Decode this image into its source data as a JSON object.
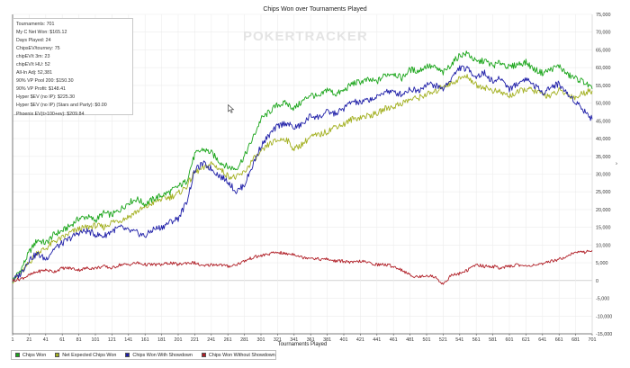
{
  "chart_data": {
    "type": "line",
    "title": "Chips Won over Tournaments Played",
    "xlabel": "Tournaments Played",
    "ylabel": "",
    "xlim": [
      1,
      701
    ],
    "ylim": [
      -15000,
      75000
    ],
    "x_ticks": [
      "1",
      "21",
      "41",
      "61",
      "81",
      "101",
      "121",
      "141",
      "161",
      "181",
      "201",
      "221",
      "241",
      "261",
      "281",
      "301",
      "321",
      "341",
      "361",
      "381",
      "401",
      "421",
      "441",
      "461",
      "481",
      "501",
      "521",
      "541",
      "561",
      "581",
      "601",
      "621",
      "641",
      "661",
      "681",
      "701"
    ],
    "y_ticks": [
      "-15,000",
      "-10,000",
      "-5,000",
      "0",
      "5,000",
      "10,000",
      "15,000",
      "20,000",
      "25,000",
      "30,000",
      "35,000",
      "40,000",
      "45,000",
      "50,000",
      "55,000",
      "60,000",
      "65,000",
      "70,000",
      "75,000"
    ],
    "y_tick_values": [
      -15000,
      -10000,
      -5000,
      0,
      5000,
      10000,
      15000,
      20000,
      25000,
      30000,
      35000,
      40000,
      45000,
      50000,
      55000,
      60000,
      65000,
      70000,
      75000
    ],
    "grid": true,
    "legend_position": "bottom-left",
    "series": [
      {
        "name": "Chips Won",
        "color": "#1aa51a",
        "x": [
          1,
          11,
          21,
          31,
          41,
          51,
          61,
          71,
          81,
          91,
          101,
          111,
          121,
          131,
          141,
          151,
          161,
          171,
          181,
          191,
          201,
          211,
          221,
          231,
          241,
          251,
          261,
          271,
          281,
          291,
          301,
          311,
          321,
          331,
          341,
          351,
          361,
          371,
          381,
          391,
          401,
          411,
          421,
          431,
          441,
          451,
          461,
          471,
          481,
          491,
          501,
          511,
          521,
          531,
          541,
          551,
          561,
          571,
          581,
          591,
          601,
          611,
          621,
          631,
          641,
          651,
          661,
          671,
          681,
          691,
          701
        ],
        "y": [
          0,
          3000,
          8000,
          11500,
          10500,
          13000,
          14000,
          15500,
          17500,
          18000,
          17000,
          19000,
          18500,
          20000,
          22000,
          23000,
          21500,
          23000,
          24000,
          25000,
          26500,
          28000,
          35500,
          37000,
          36000,
          33500,
          32000,
          31500,
          35000,
          40000,
          45500,
          47500,
          49500,
          50000,
          48500,
          50500,
          52500,
          51500,
          54000,
          52500,
          53500,
          55500,
          56000,
          56500,
          56000,
          58000,
          58500,
          57000,
          59500,
          59000,
          60500,
          60000,
          58500,
          61000,
          63500,
          64000,
          61500,
          62000,
          60500,
          61500,
          60000,
          61000,
          61500,
          59500,
          58500,
          59500,
          60500,
          58000,
          57000,
          56000,
          54000
        ]
      },
      {
        "name": "Net Expected Chips Won",
        "color": "#a3b021",
        "x": [
          1,
          11,
          21,
          31,
          41,
          51,
          61,
          71,
          81,
          91,
          101,
          111,
          121,
          131,
          141,
          151,
          161,
          171,
          181,
          191,
          201,
          211,
          221,
          231,
          241,
          251,
          261,
          271,
          281,
          291,
          301,
          311,
          321,
          331,
          341,
          351,
          361,
          371,
          381,
          391,
          401,
          411,
          421,
          431,
          441,
          451,
          461,
          471,
          481,
          491,
          501,
          511,
          521,
          531,
          541,
          551,
          561,
          571,
          581,
          591,
          601,
          611,
          621,
          631,
          641,
          651,
          661,
          671,
          681,
          691,
          701
        ],
        "y": [
          0,
          2000,
          5000,
          8000,
          9000,
          11000,
          12000,
          13500,
          14500,
          15000,
          15500,
          15000,
          16500,
          17000,
          18000,
          19500,
          20500,
          22000,
          23000,
          23500,
          24500,
          26500,
          30500,
          31500,
          33000,
          31500,
          29500,
          29000,
          30500,
          34000,
          36000,
          38500,
          39500,
          40000,
          37000,
          38500,
          40500,
          41000,
          42000,
          43500,
          44000,
          45500,
          46000,
          46500,
          47000,
          48500,
          49000,
          50000,
          51000,
          51500,
          52500,
          53000,
          55000,
          55500,
          57000,
          57500,
          55000,
          54500,
          53500,
          53000,
          52000,
          53000,
          54000,
          53500,
          52500,
          52000,
          53500,
          52500,
          51500,
          53000,
          53500
        ]
      },
      {
        "name": "Chips Won With Showdown",
        "color": "#1f1fa8",
        "x": [
          1,
          11,
          21,
          31,
          41,
          51,
          61,
          71,
          81,
          91,
          101,
          111,
          121,
          131,
          141,
          151,
          161,
          171,
          181,
          191,
          201,
          211,
          221,
          231,
          241,
          251,
          261,
          271,
          281,
          291,
          301,
          311,
          321,
          331,
          341,
          351,
          361,
          371,
          381,
          391,
          401,
          411,
          421,
          431,
          441,
          451,
          461,
          471,
          481,
          491,
          501,
          511,
          521,
          531,
          541,
          551,
          561,
          571,
          581,
          591,
          601,
          611,
          621,
          631,
          641,
          651,
          661,
          671,
          681,
          691,
          701
        ],
        "y": [
          0,
          2000,
          6000,
          7500,
          6000,
          9000,
          10500,
          12000,
          13500,
          14000,
          13000,
          12500,
          14000,
          15000,
          14000,
          13500,
          12500,
          14500,
          15000,
          16500,
          17500,
          22000,
          31000,
          33000,
          31500,
          29500,
          28000,
          25000,
          27000,
          32500,
          38000,
          41000,
          43500,
          44500,
          43000,
          44000,
          46500,
          46000,
          47500,
          47000,
          48500,
          50500,
          50000,
          51000,
          51500,
          53500,
          53000,
          52500,
          54000,
          53500,
          55500,
          55000,
          54000,
          57000,
          60000,
          59500,
          57500,
          58500,
          56000,
          57000,
          54000,
          55500,
          57000,
          55000,
          53000,
          54500,
          55500,
          52500,
          50500,
          48000,
          45500
        ]
      },
      {
        "name": "Chips Won Without Showdown",
        "color": "#b01e26",
        "x": [
          1,
          11,
          21,
          31,
          41,
          51,
          61,
          71,
          81,
          91,
          101,
          111,
          121,
          131,
          141,
          151,
          161,
          171,
          181,
          191,
          201,
          211,
          221,
          231,
          241,
          251,
          261,
          271,
          281,
          291,
          301,
          311,
          321,
          331,
          341,
          351,
          361,
          371,
          381,
          391,
          401,
          411,
          421,
          431,
          441,
          451,
          461,
          471,
          481,
          491,
          501,
          511,
          521,
          531,
          541,
          551,
          561,
          571,
          581,
          591,
          601,
          611,
          621,
          631,
          641,
          651,
          661,
          671,
          681,
          691,
          701
        ],
        "y": [
          0,
          500,
          1500,
          2500,
          3000,
          2500,
          3500,
          3500,
          3000,
          3500,
          3500,
          4000,
          3500,
          4500,
          4500,
          5000,
          4500,
          4500,
          4500,
          5000,
          4500,
          5000,
          5000,
          4000,
          4500,
          4500,
          4000,
          4500,
          5500,
          6500,
          7000,
          7500,
          8000,
          7500,
          7500,
          6500,
          6500,
          6000,
          6000,
          5500,
          5500,
          5000,
          5500,
          5000,
          4500,
          4500,
          4000,
          3000,
          1500,
          1000,
          1500,
          1000,
          -1000,
          1500,
          2000,
          3000,
          4500,
          4000,
          4000,
          3500,
          4000,
          4500,
          4000,
          4500,
          4500,
          5500,
          6000,
          7000,
          8000,
          8000,
          8500
        ]
      }
    ]
  },
  "stats_lines": [
    "Tournaments: 701",
    "My C Net Won: $165.12",
    "Days Played: 24",
    "ChipsEV/tourney: 75",
    "chipEV/t 3m: 23",
    "chipEV/t HU: 52",
    "All-In Adj: 52,381",
    "90% VP Pool 200: $150.30",
    "90% VP Profit: $148.41",
    "Hyper $EV (no IP): $225.30",
    "Hyper $EV (no IP) (Stars and Party): $0.00",
    "Phoenix EV(t>100+ev): $209.84"
  ],
  "watermark": "POKERTRACKER"
}
